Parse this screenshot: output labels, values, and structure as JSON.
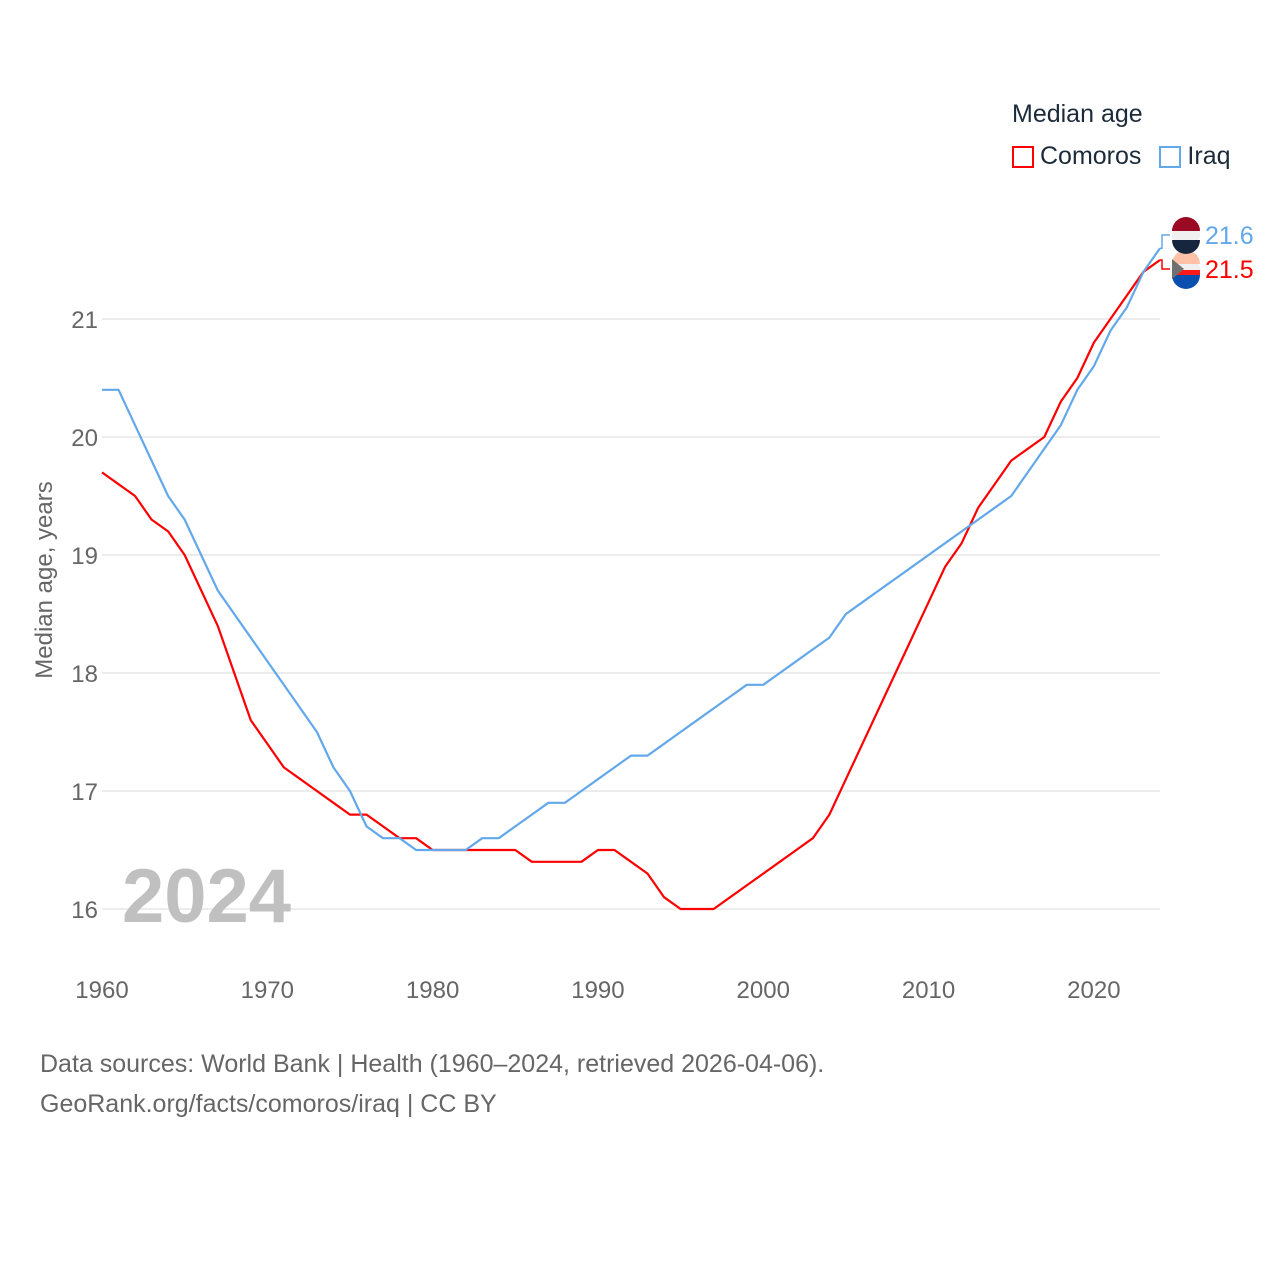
{
  "chart_data": {
    "type": "line",
    "title": "Median age",
    "ylabel": "Median age, years",
    "xlabel": "",
    "xlim": [
      1960,
      2024
    ],
    "ylim": [
      15.6,
      21.9
    ],
    "x_ticks": [
      1960,
      1970,
      1980,
      1990,
      2000,
      2010,
      2020
    ],
    "y_ticks": [
      16,
      17,
      18,
      19,
      20,
      21
    ],
    "grid": "horizontal",
    "legend_position": "top-right",
    "year_label": "2024",
    "x": [
      1960,
      1961,
      1962,
      1963,
      1964,
      1965,
      1966,
      1967,
      1968,
      1969,
      1970,
      1971,
      1972,
      1973,
      1974,
      1975,
      1976,
      1977,
      1978,
      1979,
      1980,
      1981,
      1982,
      1983,
      1984,
      1985,
      1986,
      1987,
      1988,
      1989,
      1990,
      1991,
      1992,
      1993,
      1994,
      1995,
      1996,
      1997,
      1998,
      1999,
      2000,
      2001,
      2002,
      2003,
      2004,
      2005,
      2006,
      2007,
      2008,
      2009,
      2010,
      2011,
      2012,
      2013,
      2014,
      2015,
      2016,
      2017,
      2018,
      2019,
      2020,
      2021,
      2022,
      2023,
      2024
    ],
    "series": [
      {
        "name": "Comoros",
        "color": "#ff0000",
        "end_label": "21.5",
        "values": [
          19.7,
          19.6,
          19.5,
          19.3,
          19.2,
          19.0,
          18.7,
          18.4,
          18.0,
          17.6,
          17.4,
          17.2,
          17.1,
          17.0,
          16.9,
          16.8,
          16.8,
          16.7,
          16.6,
          16.6,
          16.5,
          16.5,
          16.5,
          16.5,
          16.5,
          16.5,
          16.4,
          16.4,
          16.4,
          16.4,
          16.5,
          16.5,
          16.4,
          16.3,
          16.1,
          16.0,
          16.0,
          16.0,
          16.1,
          16.2,
          16.3,
          16.4,
          16.5,
          16.6,
          16.8,
          17.1,
          17.4,
          17.7,
          18.0,
          18.3,
          18.6,
          18.9,
          19.1,
          19.4,
          19.6,
          19.8,
          19.9,
          20.0,
          20.3,
          20.5,
          20.8,
          21.0,
          21.2,
          21.4,
          21.5
        ]
      },
      {
        "name": "Iraq",
        "color": "#62a8ea",
        "end_label": "21.6",
        "values": [
          20.4,
          20.4,
          20.1,
          19.8,
          19.5,
          19.3,
          19.0,
          18.7,
          18.5,
          18.3,
          18.1,
          17.9,
          17.7,
          17.5,
          17.2,
          17.0,
          16.7,
          16.6,
          16.6,
          16.5,
          16.5,
          16.5,
          16.5,
          16.6,
          16.6,
          16.7,
          16.8,
          16.9,
          16.9,
          17.0,
          17.1,
          17.2,
          17.3,
          17.3,
          17.4,
          17.5,
          17.6,
          17.7,
          17.8,
          17.9,
          17.9,
          18.0,
          18.1,
          18.2,
          18.3,
          18.5,
          18.6,
          18.7,
          18.8,
          18.9,
          19.0,
          19.1,
          19.2,
          19.3,
          19.4,
          19.5,
          19.7,
          19.9,
          20.1,
          20.4,
          20.6,
          20.9,
          21.1,
          21.4,
          21.6
        ]
      }
    ]
  },
  "source_line1": "Data sources: World Bank | Health (1960–2024, retrieved 2026-04-06).",
  "source_line2": "GeoRank.org/facts/comoros/iraq | CC BY"
}
